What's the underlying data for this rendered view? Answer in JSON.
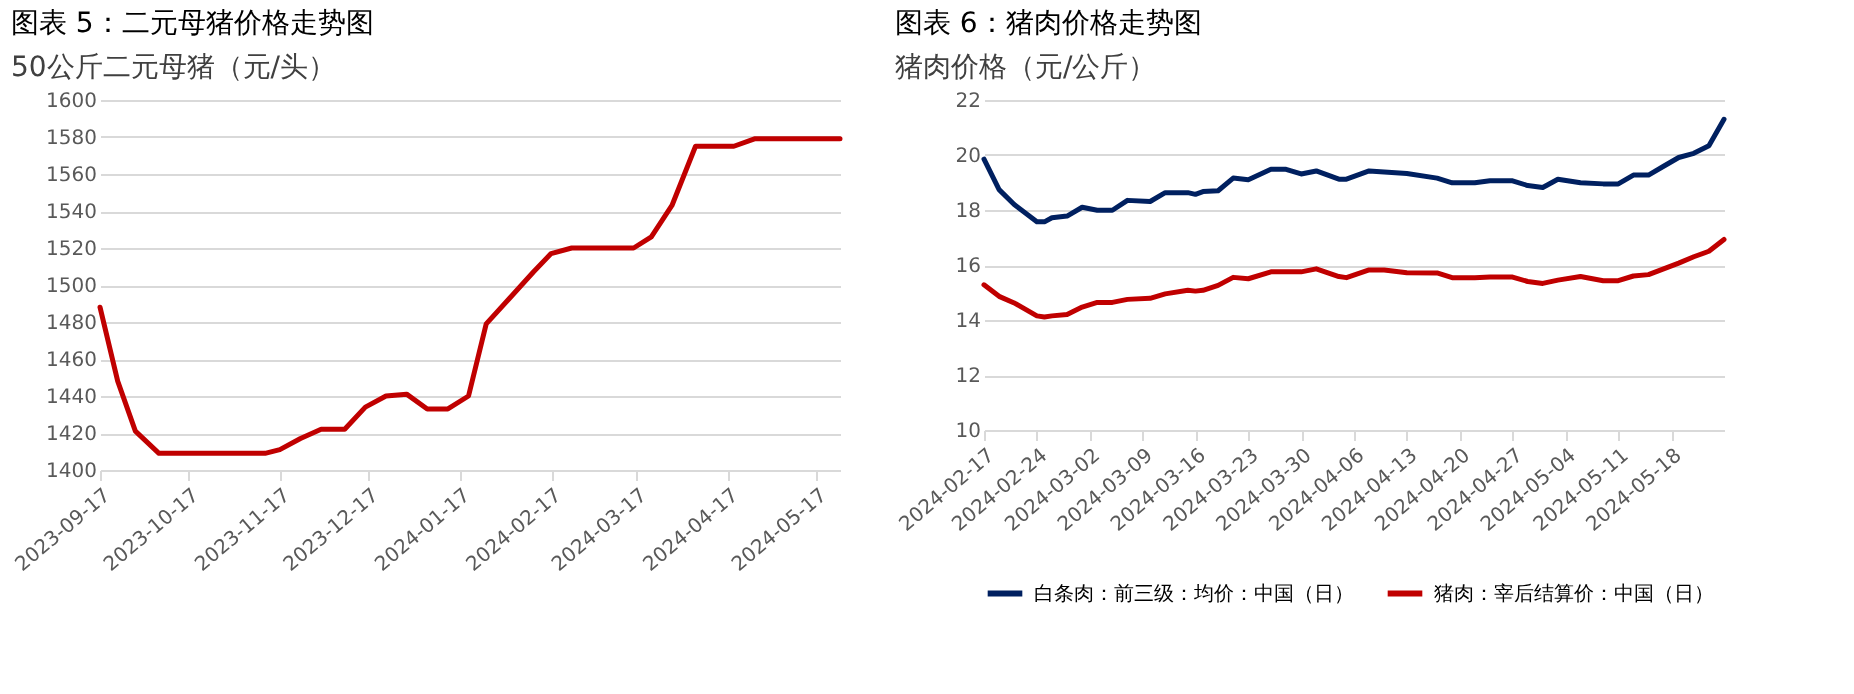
{
  "chart_data": [
    {
      "type": "line",
      "title": "图表 5：二元母猪价格走势图",
      "subtitle": "50公斤二元母猪（元/头）",
      "x": [
        "2023-09-17",
        "2023-09-23",
        "2023-09-29",
        "2023-10-07",
        "2023-11-12",
        "2023-11-17",
        "2023-11-24",
        "2023-12-01",
        "2023-12-09",
        "2023-12-16",
        "2023-12-23",
        "2023-12-30",
        "2024-01-06",
        "2024-01-13",
        "2024-01-20",
        "2024-01-26",
        "2024-02-03",
        "2024-02-11",
        "2024-02-17",
        "2024-02-24",
        "2024-03-16",
        "2024-03-22",
        "2024-03-29",
        "2024-04-06",
        "2024-04-19",
        "2024-04-26",
        "2024-05-25"
      ],
      "series": [
        {
          "color": "#c00000",
          "values": [
            1488,
            1448,
            1421,
            1409,
            1409,
            1411,
            1417,
            1422,
            1422,
            1434,
            1440,
            1441,
            1433,
            1433,
            1440,
            1479,
            1493,
            1507,
            1517,
            1520,
            1520,
            1526,
            1543,
            1575,
            1575,
            1579,
            1579
          ]
        }
      ],
      "xlim": [
        "2023-09-17",
        "2024-05-25"
      ],
      "xticks": [
        "2023-09-17",
        "2023-10-17",
        "2023-11-17",
        "2023-12-17",
        "2024-01-17",
        "2024-02-17",
        "2024-03-17",
        "2024-04-17",
        "2024-05-17"
      ],
      "ylim": [
        1400,
        1600
      ],
      "yticks": [
        1400,
        1420,
        1440,
        1460,
        1480,
        1500,
        1520,
        1540,
        1560,
        1580,
        1600
      ],
      "grid": "y",
      "legend": false
    },
    {
      "type": "line",
      "title": "图表 6：猪肉价格走势图",
      "subtitle": "猪肉价格（元/公斤）",
      "x": [
        "2024-02-17",
        "2024-02-19",
        "2024-02-21",
        "2024-02-24",
        "2024-02-25",
        "2024-02-26",
        "2024-02-28",
        "2024-03-01",
        "2024-03-03",
        "2024-03-05",
        "2024-03-07",
        "2024-03-10",
        "2024-03-12",
        "2024-03-15",
        "2024-03-16",
        "2024-03-17",
        "2024-03-19",
        "2024-03-21",
        "2024-03-23",
        "2024-03-26",
        "2024-03-28",
        "2024-03-30",
        "2024-04-01",
        "2024-04-04",
        "2024-04-05",
        "2024-04-08",
        "2024-04-10",
        "2024-04-13",
        "2024-04-17",
        "2024-04-19",
        "2024-04-22",
        "2024-04-24",
        "2024-04-27",
        "2024-04-29",
        "2024-05-01",
        "2024-05-03",
        "2024-05-06",
        "2024-05-09",
        "2024-05-11",
        "2024-05-13",
        "2024-05-15",
        "2024-05-17",
        "2024-05-19",
        "2024-05-21",
        "2024-05-23",
        "2024-05-25"
      ],
      "series": [
        {
          "name": "白条肉：前三级：均价：中国（日）",
          "color": "#002060",
          "values": [
            19.85,
            18.74,
            18.2,
            17.57,
            17.57,
            17.72,
            17.78,
            18.1,
            17.99,
            17.99,
            18.35,
            18.31,
            18.63,
            18.63,
            18.57,
            18.67,
            18.7,
            19.16,
            19.1,
            19.48,
            19.48,
            19.31,
            19.42,
            19.12,
            19.12,
            19.42,
            19.38,
            19.33,
            19.16,
            18.99,
            18.99,
            19.06,
            19.06,
            18.89,
            18.82,
            19.12,
            18.99,
            18.95,
            18.95,
            19.27,
            19.27,
            19.59,
            19.91,
            20.06,
            20.34,
            21.3
          ]
        },
        {
          "name": "猪肉：宰后结算价：中国（日）",
          "color": "#c00000",
          "values": [
            15.28,
            14.86,
            14.62,
            14.15,
            14.11,
            14.15,
            14.2,
            14.47,
            14.64,
            14.64,
            14.75,
            14.79,
            14.95,
            15.08,
            15.05,
            15.08,
            15.26,
            15.55,
            15.5,
            15.75,
            15.75,
            15.75,
            15.86,
            15.58,
            15.54,
            15.82,
            15.82,
            15.72,
            15.71,
            15.54,
            15.54,
            15.56,
            15.56,
            15.4,
            15.33,
            15.45,
            15.58,
            15.43,
            15.43,
            15.6,
            15.65,
            15.86,
            16.07,
            16.3,
            16.5,
            16.93
          ]
        }
      ],
      "xlim": [
        "2024-02-17",
        "2024-05-25"
      ],
      "xticks": [
        "2024-02-17",
        "2024-02-24",
        "2024-03-02",
        "2024-03-09",
        "2024-03-16",
        "2024-03-23",
        "2024-03-30",
        "2024-04-06",
        "2024-04-13",
        "2024-04-20",
        "2024-04-27",
        "2024-05-04",
        "2024-05-11",
        "2024-05-18"
      ],
      "ylim": [
        10,
        22
      ],
      "yticks": [
        10,
        12,
        14,
        16,
        18,
        20,
        22
      ],
      "grid": "y",
      "legend": "bottom"
    }
  ]
}
